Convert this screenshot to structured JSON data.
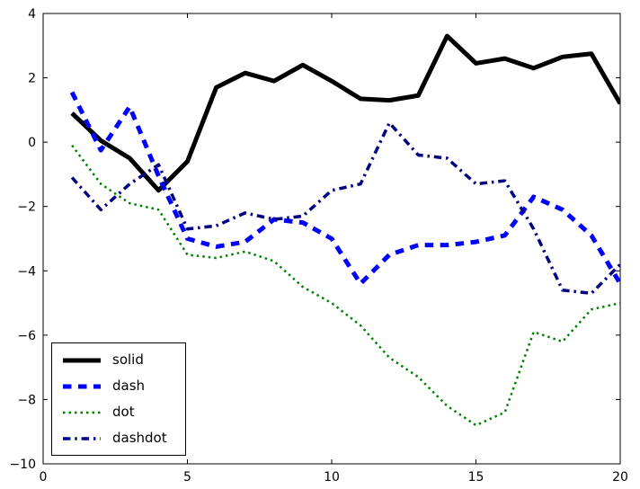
{
  "figure": {
    "background": "#ffffff"
  },
  "chart_data": {
    "type": "line",
    "title": "",
    "xlabel": "",
    "ylabel": "",
    "xlim": [
      0,
      20
    ],
    "ylim": [
      -10,
      4
    ],
    "xticks": [
      0,
      5,
      10,
      15,
      20
    ],
    "yticks": [
      -10,
      -8,
      -6,
      -4,
      -2,
      0,
      2,
      4
    ],
    "grid": false,
    "legend": {
      "position": "lower-left",
      "entries": [
        "solid",
        "dash",
        "dot",
        "dashdot"
      ]
    },
    "x": [
      1,
      2,
      3,
      4,
      5,
      6,
      7,
      8,
      9,
      10,
      11,
      12,
      13,
      14,
      15,
      16,
      17,
      18,
      19,
      20
    ],
    "series": [
      {
        "name": "solid",
        "style": "solid",
        "color": "#000000",
        "width": 5,
        "values": [
          0.9,
          0.05,
          -0.5,
          -1.5,
          -0.6,
          1.7,
          2.15,
          1.9,
          2.4,
          1.9,
          1.35,
          1.3,
          1.45,
          3.3,
          2.45,
          2.6,
          2.3,
          2.65,
          2.75,
          1.2
        ]
      },
      {
        "name": "dash",
        "style": "dash",
        "color": "#0000ff",
        "width": 5,
        "values": [
          1.55,
          -0.25,
          1.1,
          -1.05,
          -3.0,
          -3.25,
          -3.1,
          -2.4,
          -2.5,
          -3.0,
          -4.4,
          -3.5,
          -3.2,
          -3.2,
          -3.1,
          -2.9,
          -1.7,
          -2.1,
          -2.9,
          -4.4
        ]
      },
      {
        "name": "dot",
        "style": "dot",
        "color": "#008000",
        "width": 2.5,
        "values": [
          -0.1,
          -1.3,
          -1.9,
          -2.1,
          -3.5,
          -3.6,
          -3.4,
          -3.7,
          -4.5,
          -5.0,
          -5.7,
          -6.7,
          -7.3,
          -8.2,
          -8.8,
          -8.4,
          -5.9,
          -6.2,
          -5.2,
          -5.0
        ]
      },
      {
        "name": "dashdot",
        "style": "dashdot",
        "color": "#000080",
        "width": 3.5,
        "values": [
          -1.1,
          -2.1,
          -1.3,
          -0.7,
          -2.7,
          -2.6,
          -2.2,
          -2.4,
          -2.3,
          -1.5,
          -1.3,
          0.6,
          -0.4,
          -0.5,
          -1.3,
          -1.2,
          -2.7,
          -4.6,
          -4.7,
          -3.8
        ]
      }
    ]
  }
}
